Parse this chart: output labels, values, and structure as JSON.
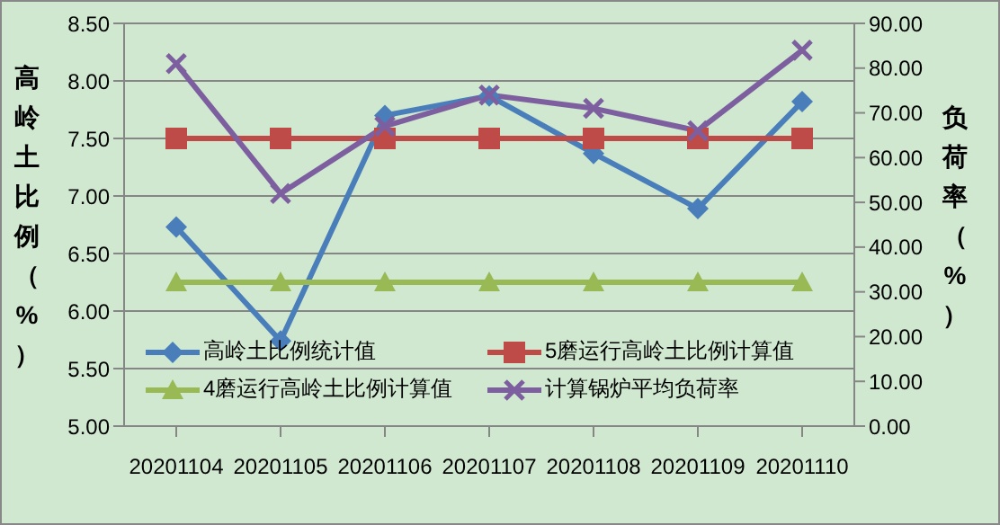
{
  "chart_data": {
    "type": "line",
    "ylabel": "高岭土比例（%）",
    "y2label": "负荷率（%）",
    "categories": [
      "20201104",
      "20201105",
      "20201106",
      "20201107",
      "20201108",
      "20201109",
      "20201110"
    ],
    "series": [
      {
        "name": "高岭土比例统计值",
        "color": "#4a7ebb",
        "marker": "diamond",
        "values": [
          6.73,
          5.74,
          7.7,
          7.87,
          7.37,
          6.89,
          7.82
        ]
      },
      {
        "name": "5磨运行高岭土比例计算值",
        "color": "#be4b48",
        "marker": "square",
        "values": [
          7.5,
          7.5,
          7.5,
          7.5,
          7.5,
          7.5,
          7.5
        ]
      },
      {
        "name": "4磨运行高岭土比例计算值",
        "color": "#98b954",
        "marker": "triangle",
        "values": [
          6.25,
          6.25,
          6.25,
          6.25,
          6.25,
          6.25,
          6.25
        ]
      },
      {
        "name": "计算锅炉平均负荷率",
        "color": "#7d5fa0",
        "marker": "cross",
        "axis": "y2",
        "values": [
          81,
          52,
          67,
          74,
          71,
          66,
          84
        ]
      }
    ],
    "ylim": [
      5,
      8.5
    ],
    "yticks": [
      {
        "value": 5,
        "label": "5.00"
      },
      {
        "value": 5.5,
        "label": "5.50"
      },
      {
        "value": 6,
        "label": "6.00"
      },
      {
        "value": 6.5,
        "label": "6.50"
      },
      {
        "value": 7,
        "label": "7.00"
      },
      {
        "value": 7.5,
        "label": "7.50"
      },
      {
        "value": 8,
        "label": "8.00"
      },
      {
        "value": 8.5,
        "label": "8.50"
      }
    ],
    "y2lim": [
      0,
      90
    ],
    "y2ticks": [
      {
        "value": 0,
        "label": "0.00"
      },
      {
        "value": 10,
        "label": "10.00"
      },
      {
        "value": 20,
        "label": "20.00"
      },
      {
        "value": 30,
        "label": "30.00"
      },
      {
        "value": 40,
        "label": "40.00"
      },
      {
        "value": 50,
        "label": "50.00"
      },
      {
        "value": 60,
        "label": "60.00"
      },
      {
        "value": 70,
        "label": "70.00"
      },
      {
        "value": 80,
        "label": "80.00"
      },
      {
        "value": 90,
        "label": "90.00"
      }
    ],
    "grid": "y",
    "legend": "bottom left"
  }
}
